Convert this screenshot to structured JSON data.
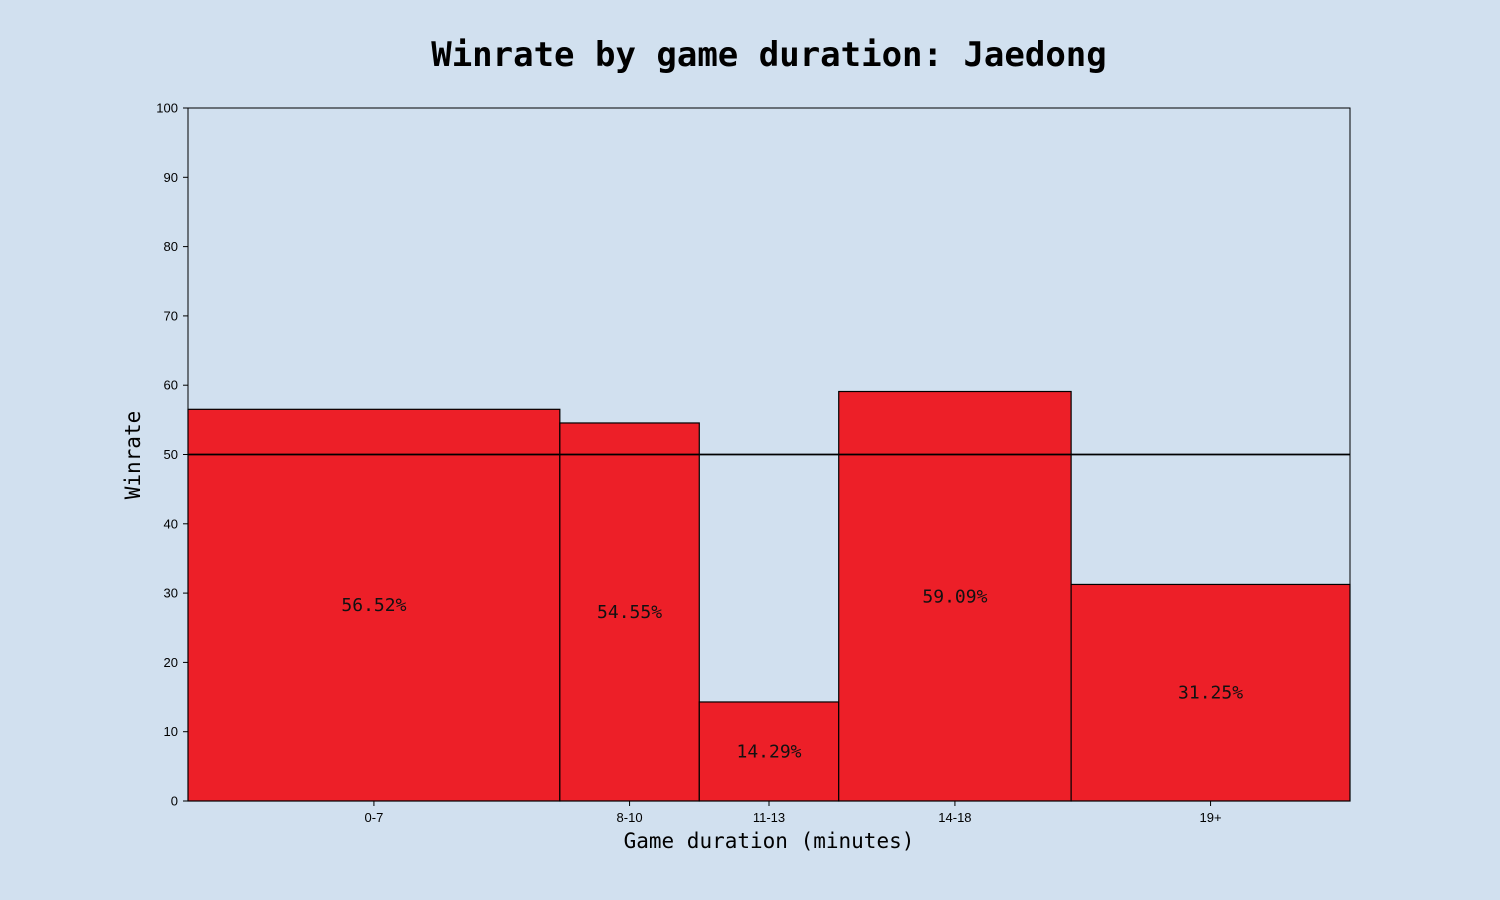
{
  "chart_data": {
    "type": "bar",
    "title": "Winrate by game duration: Jaedong",
    "xlabel": "Game duration (minutes)",
    "ylabel": "Winrate",
    "ylim": [
      0,
      100
    ],
    "yticks": [
      0,
      10,
      20,
      30,
      40,
      50,
      60,
      70,
      80,
      90,
      100
    ],
    "reference_line": 50,
    "grid": false,
    "bars": [
      {
        "category": "0-7",
        "start": 0,
        "end": 8,
        "value": 56.52,
        "label": "56.52%"
      },
      {
        "category": "8-10",
        "start": 8,
        "end": 11,
        "value": 54.55,
        "label": "54.55%"
      },
      {
        "category": "11-13",
        "start": 11,
        "end": 14,
        "value": 14.29,
        "label": "14.29%"
      },
      {
        "category": "14-18",
        "start": 14,
        "end": 19,
        "value": 59.09,
        "label": "59.09%"
      },
      {
        "category": "19+",
        "start": 19,
        "end": 25,
        "value": 31.25,
        "label": "31.25%"
      }
    ],
    "colors": {
      "background": "#d1e0ef",
      "bar": "#ed1f28",
      "edge": "#000000"
    }
  }
}
